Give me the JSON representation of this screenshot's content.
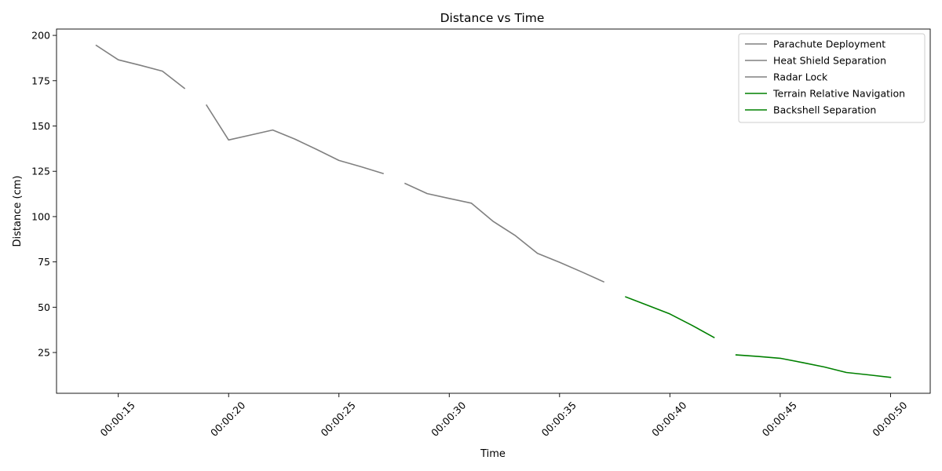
{
  "chart_data": {
    "type": "line",
    "title": "Distance vs Time",
    "xlabel": "Time",
    "ylabel": "Distance (cm)",
    "x_ticks": [
      "00:00:15",
      "00:00:20",
      "00:00:25",
      "00:00:30",
      "00:00:35",
      "00:00:40",
      "00:00:45",
      "00:00:50"
    ],
    "y_ticks": [
      25,
      50,
      75,
      100,
      125,
      150,
      175,
      200
    ],
    "xlim": [
      "00:00:12.2",
      "00:00:51.8"
    ],
    "ylim": [
      2.5,
      203.5
    ],
    "grid": false,
    "legend_position": "top-right",
    "series": [
      {
        "name": "Parachute Deployment",
        "color": "#808080",
        "points": [
          [
            "00:00:14",
            194.5
          ],
          [
            "00:00:15",
            186.5
          ],
          [
            "00:00:16",
            183.5
          ],
          [
            "00:00:17",
            180.3
          ],
          [
            "00:00:18",
            170.8
          ]
        ]
      },
      {
        "name": "Heat Shield Separation",
        "color": "#808080",
        "points": [
          [
            "00:00:19",
            161.5
          ],
          [
            "00:00:20",
            142.3
          ],
          [
            "00:00:21",
            145.0
          ],
          [
            "00:00:22",
            147.8
          ],
          [
            "00:00:23",
            142.8
          ],
          [
            "00:00:24",
            137.0
          ],
          [
            "00:00:25",
            131.0
          ],
          [
            "00:00:26",
            127.5
          ],
          [
            "00:00:27",
            123.8
          ]
        ]
      },
      {
        "name": "Radar Lock",
        "color": "#808080",
        "points": [
          [
            "00:00:28",
            118.3
          ],
          [
            "00:00:29",
            112.7
          ],
          [
            "00:00:30",
            110.0
          ],
          [
            "00:00:31",
            107.4
          ],
          [
            "00:00:32",
            97.3
          ],
          [
            "00:00:33",
            89.5
          ],
          [
            "00:00:34",
            79.7
          ],
          [
            "00:00:35",
            74.8
          ],
          [
            "00:00:36",
            69.5
          ],
          [
            "00:00:37",
            64.0
          ]
        ]
      },
      {
        "name": "Terrain Relative Navigation",
        "color": "#008000",
        "points": [
          [
            "00:00:38",
            55.7
          ],
          [
            "00:00:39",
            51.0
          ],
          [
            "00:00:40",
            46.3
          ],
          [
            "00:00:41",
            40.0
          ],
          [
            "00:00:42",
            33.3
          ]
        ]
      },
      {
        "name": "Backshell Separation",
        "color": "#008000",
        "points": [
          [
            "00:00:43",
            23.7
          ],
          [
            "00:00:44",
            22.8
          ],
          [
            "00:00:45",
            21.8
          ],
          [
            "00:00:46",
            19.5
          ],
          [
            "00:00:47",
            17.0
          ],
          [
            "00:00:48",
            14.0
          ],
          [
            "00:00:49",
            12.7
          ],
          [
            "00:00:50",
            11.3
          ]
        ]
      }
    ]
  }
}
